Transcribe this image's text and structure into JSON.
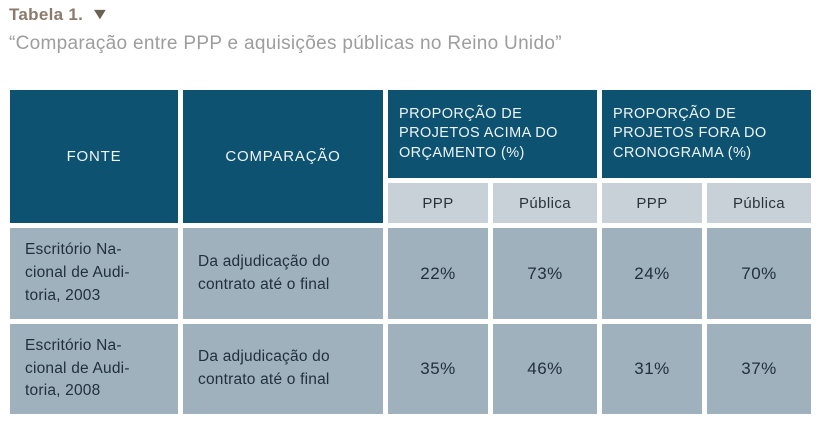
{
  "title": {
    "label": "Tabela 1.",
    "caret_icon": "▼"
  },
  "subtitle": "“Comparação entre PPP e aquisições públicas no Reino Unido”",
  "colors": {
    "header_bg": "#0d5271",
    "header_text": "#eef4f6",
    "subheader_bg": "#c8d1d7",
    "row_bg": "#9fb1bd",
    "data_text": "#22303c",
    "title_color": "#8c7a6b",
    "subtitle_color": "#9d9d9d"
  },
  "table": {
    "headers": {
      "fonte": "FONTE",
      "comparacao": "COMPARAÇÃO",
      "group1": "PROPORÇÃO DE PROJETOS ACIMA DO ORÇAMENTO (%)",
      "group2": "PROPORÇÃO DE PROJETOS FORA DO CRONOGRAMA (%)",
      "sub": [
        "PPP",
        "Pública",
        "PPP",
        "Pública"
      ]
    },
    "rows": [
      {
        "fonte": "Escritório Na-\ncional de Audi-\ntoria, 2003",
        "comparacao": "Da adjudicação do\ncontrato até o final",
        "values": [
          "22%",
          "73%",
          "24%",
          "70%"
        ]
      },
      {
        "fonte": "Escritório Na-\ncional de Audi-\ntoria, 2008",
        "comparacao": "Da adjudicação do\ncontrato até o final",
        "values": [
          "35%",
          "46%",
          "31%",
          "37%"
        ]
      }
    ]
  }
}
